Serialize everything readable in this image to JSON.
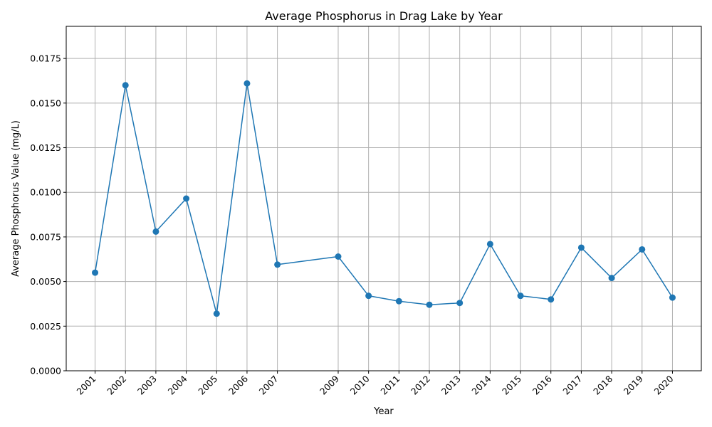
{
  "chart_data": {
    "type": "line",
    "title": "Average Phosphorus in Drag Lake by Year",
    "xlabel": "Year",
    "ylabel": "Average Phosphorus Value (mg/L)",
    "x": [
      2001,
      2002,
      2003,
      2004,
      2005,
      2006,
      2007,
      2009,
      2010,
      2011,
      2012,
      2013,
      2014,
      2015,
      2016,
      2017,
      2018,
      2019,
      2020
    ],
    "series": [
      {
        "values": [
          0.0055,
          0.016,
          0.0078,
          0.00965,
          0.0032,
          0.0161,
          0.00595,
          0.0064,
          0.0042,
          0.0039,
          0.0037,
          0.0038,
          0.0071,
          0.0042,
          0.004,
          0.0069,
          0.0052,
          0.0068,
          0.0041
        ],
        "color": "#1f77b4",
        "marker": "circle"
      }
    ],
    "xlim": [
      2000.05,
      2020.95
    ],
    "ylim": [
      0,
      0.0193
    ],
    "yticks": [
      "0.0000",
      "0.0025",
      "0.0050",
      "0.0075",
      "0.0100",
      "0.0125",
      "0.0150",
      "0.0175"
    ],
    "ytick_values": [
      0,
      0.0025,
      0.005,
      0.0075,
      0.01,
      0.0125,
      0.015,
      0.0175
    ],
    "xtick_labels": [
      "2001",
      "2002",
      "2003",
      "2004",
      "2005",
      "2006",
      "2007",
      "2009",
      "2010",
      "2011",
      "2012",
      "2013",
      "2014",
      "2015",
      "2016",
      "2017",
      "2018",
      "2019",
      "2020"
    ],
    "xtick_rotation": 45,
    "grid": true,
    "grid_color": "#b0b0b0"
  }
}
